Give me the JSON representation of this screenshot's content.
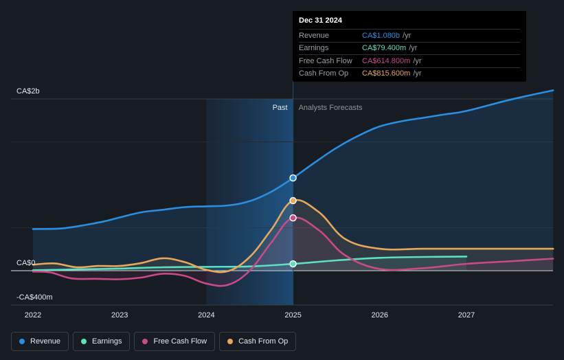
{
  "colors": {
    "revenue": "#2a8fe0",
    "earnings": "#5ce0c4",
    "free_cash_flow": "#c94a86",
    "cash_from_op": "#e8a85a",
    "background": "#171b22"
  },
  "tooltip": {
    "date": "Dec 31 2024",
    "rows": [
      {
        "name": "Revenue",
        "value": "CA$1.080b",
        "unit": "/yr"
      },
      {
        "name": "Earnings",
        "value": "CA$79.400m",
        "unit": "/yr"
      },
      {
        "name": "Free Cash Flow",
        "value": "CA$614.800m",
        "unit": "/yr"
      },
      {
        "name": "Cash From Op",
        "value": "CA$815.600m",
        "unit": "/yr"
      }
    ]
  },
  "legend": [
    {
      "label": "Revenue",
      "color": "#2a8fe0"
    },
    {
      "label": "Earnings",
      "color": "#5ce0c4"
    },
    {
      "label": "Free Cash Flow",
      "color": "#c94a86"
    },
    {
      "label": "Cash From Op",
      "color": "#e8a85a"
    }
  ],
  "chart_data": {
    "type": "line",
    "title": "",
    "xlabel": "",
    "ylabel": "",
    "x_ticks": [
      "2022",
      "2023",
      "2024",
      "2025",
      "2026",
      "2027"
    ],
    "xlim": [
      2021.75,
      2028.0
    ],
    "y_tick_labels": [
      {
        "value": 2000000000,
        "label": "CA$2b"
      },
      {
        "value": 0,
        "label": "CA$0"
      },
      {
        "value": -400000000,
        "label": "-CA$400m"
      }
    ],
    "ylim": [
      -400000000,
      2000000000
    ],
    "region_labels": {
      "past": "Past",
      "forecast": "Analysts Forecasts"
    },
    "highlight_x": 2025.0,
    "past_shade_start": 2024.0,
    "series": [
      {
        "name": "Revenue",
        "key": "revenue",
        "x": [
          2022.0,
          2022.3,
          2022.5,
          2022.8,
          2023.0,
          2023.25,
          2023.5,
          2023.75,
          2024.0,
          2024.25,
          2024.5,
          2024.75,
          2025.0,
          2025.25,
          2025.5,
          2025.75,
          2026.0,
          2026.25,
          2026.5,
          2026.75,
          2027.0,
          2027.5,
          2028.0
        ],
        "values": [
          485000000,
          490000000,
          515000000,
          570000000,
          620000000,
          680000000,
          710000000,
          740000000,
          750000000,
          760000000,
          810000000,
          920000000,
          1080000000,
          1260000000,
          1430000000,
          1570000000,
          1680000000,
          1740000000,
          1780000000,
          1820000000,
          1860000000,
          1990000000,
          2100000000
        ]
      },
      {
        "name": "Earnings",
        "key": "earnings",
        "x": [
          2022.0,
          2022.5,
          2023.0,
          2023.5,
          2024.0,
          2024.5,
          2025.0,
          2025.5,
          2026.0,
          2026.5,
          2027.0
        ],
        "values": [
          5000000,
          15000000,
          25000000,
          40000000,
          45000000,
          50000000,
          79400000,
          120000000,
          150000000,
          160000000,
          165000000
        ]
      },
      {
        "name": "Free Cash Flow",
        "key": "free_cash_flow",
        "x": [
          2022.0,
          2022.2,
          2022.45,
          2022.75,
          2023.0,
          2023.25,
          2023.5,
          2023.75,
          2024.0,
          2024.25,
          2024.5,
          2024.75,
          2025.0,
          2025.3,
          2025.6,
          2026.0,
          2026.5,
          2027.0,
          2027.5,
          2028.0
        ],
        "values": [
          -10000000,
          -20000000,
          -90000000,
          -95000000,
          -100000000,
          -80000000,
          -35000000,
          -60000000,
          -150000000,
          -165000000,
          0,
          330000000,
          614800000,
          470000000,
          180000000,
          20000000,
          30000000,
          80000000,
          110000000,
          140000000
        ]
      },
      {
        "name": "Cash From Op",
        "key": "cash_from_op",
        "x": [
          2022.0,
          2022.25,
          2022.5,
          2022.75,
          2023.0,
          2023.25,
          2023.5,
          2023.75,
          2024.0,
          2024.25,
          2024.5,
          2024.75,
          2025.0,
          2025.3,
          2025.6,
          2026.0,
          2026.5,
          2027.0,
          2027.5,
          2028.0
        ],
        "values": [
          70000000,
          85000000,
          40000000,
          55000000,
          55000000,
          90000000,
          145000000,
          100000000,
          10000000,
          -5000000,
          160000000,
          480000000,
          815600000,
          680000000,
          370000000,
          255000000,
          255000000,
          255000000,
          255000000,
          255000000
        ]
      }
    ]
  }
}
